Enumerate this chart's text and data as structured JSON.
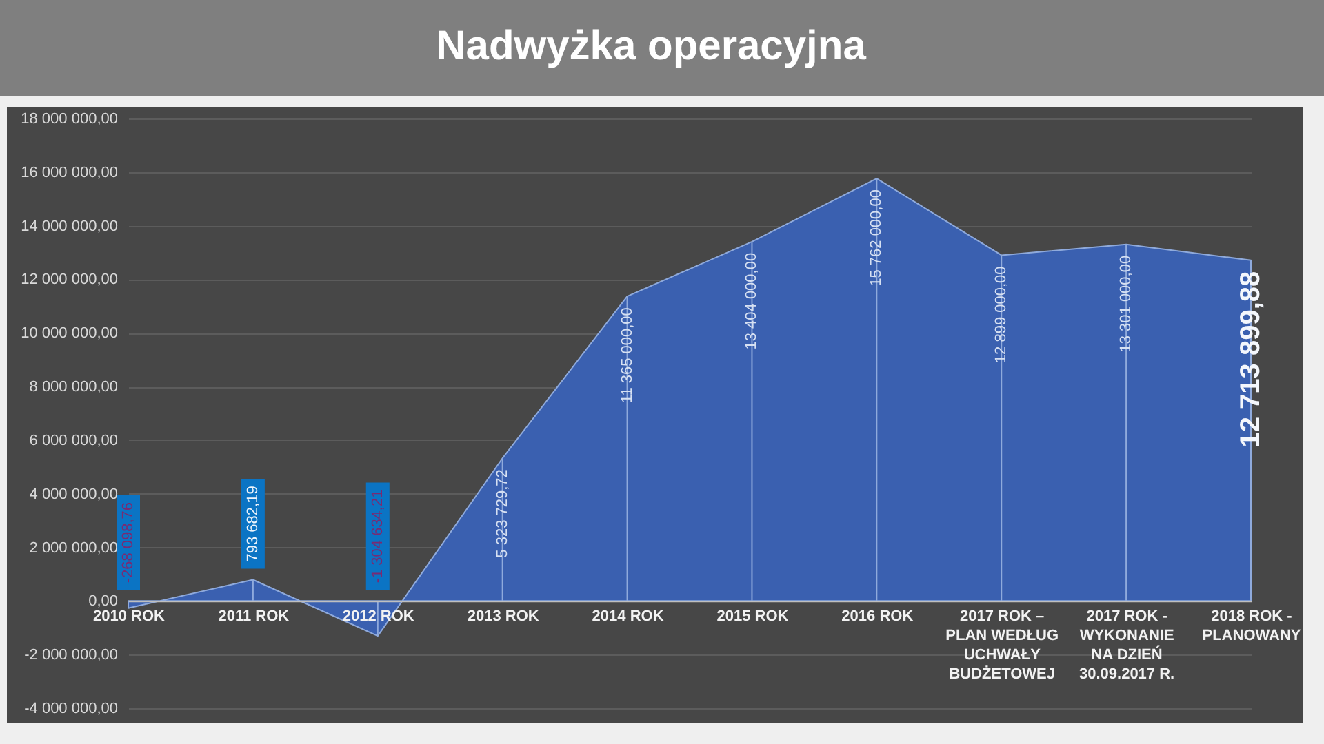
{
  "chart_data": {
    "type": "area",
    "title": "Nadwyżka operacyjna",
    "categories": [
      "2010 ROK",
      "2011 ROK",
      "2012 ROK",
      "2013 ROK",
      "2014 ROK",
      "2015 ROK",
      "2016 ROK",
      "2017 ROK – PLAN WEDŁUG UCHWAŁY BUDŻETOWEJ",
      "2017 ROK - WYKONANIE NA DZIEŃ 30.09.2017 R.",
      "2018 ROK - PLANOWANY"
    ],
    "values": [
      -268098.76,
      793682.19,
      -1304634.21,
      5323729.72,
      11365000,
      13404000,
      15762000,
      12899000,
      13301000,
      12713899.88
    ],
    "value_labels": [
      "-268 098,76",
      "793 682,19",
      "-1 304 634,21",
      "5 323 729,72",
      "11 365 000,00",
      "13 404 000,00",
      "15 762 000,00",
      "12 899 000,00",
      "13 301 000,00",
      "12 713 899,88"
    ],
    "color": "#3a60b0",
    "ylim": [
      -4000000,
      18000000
    ],
    "yticks": [
      {
        "value": -4000000,
        "label": "-4 000 000,00"
      },
      {
        "value": -2000000,
        "label": "-2 000 000,00"
      },
      {
        "value": 0,
        "label": "0,00"
      },
      {
        "value": 2000000,
        "label": "2 000 000,00"
      },
      {
        "value": 4000000,
        "label": "4 000 000,00"
      },
      {
        "value": 6000000,
        "label": "6 000 000,00"
      },
      {
        "value": 8000000,
        "label": "8 000 000,00"
      },
      {
        "value": 10000000,
        "label": "10 000 000,00"
      },
      {
        "value": 12000000,
        "label": "12 000 000,00"
      },
      {
        "value": 14000000,
        "label": "14 000 000,00"
      },
      {
        "value": 16000000,
        "label": "16 000 000,00"
      },
      {
        "value": 18000000,
        "label": "18 000 000,00"
      }
    ],
    "grid": "y"
  }
}
